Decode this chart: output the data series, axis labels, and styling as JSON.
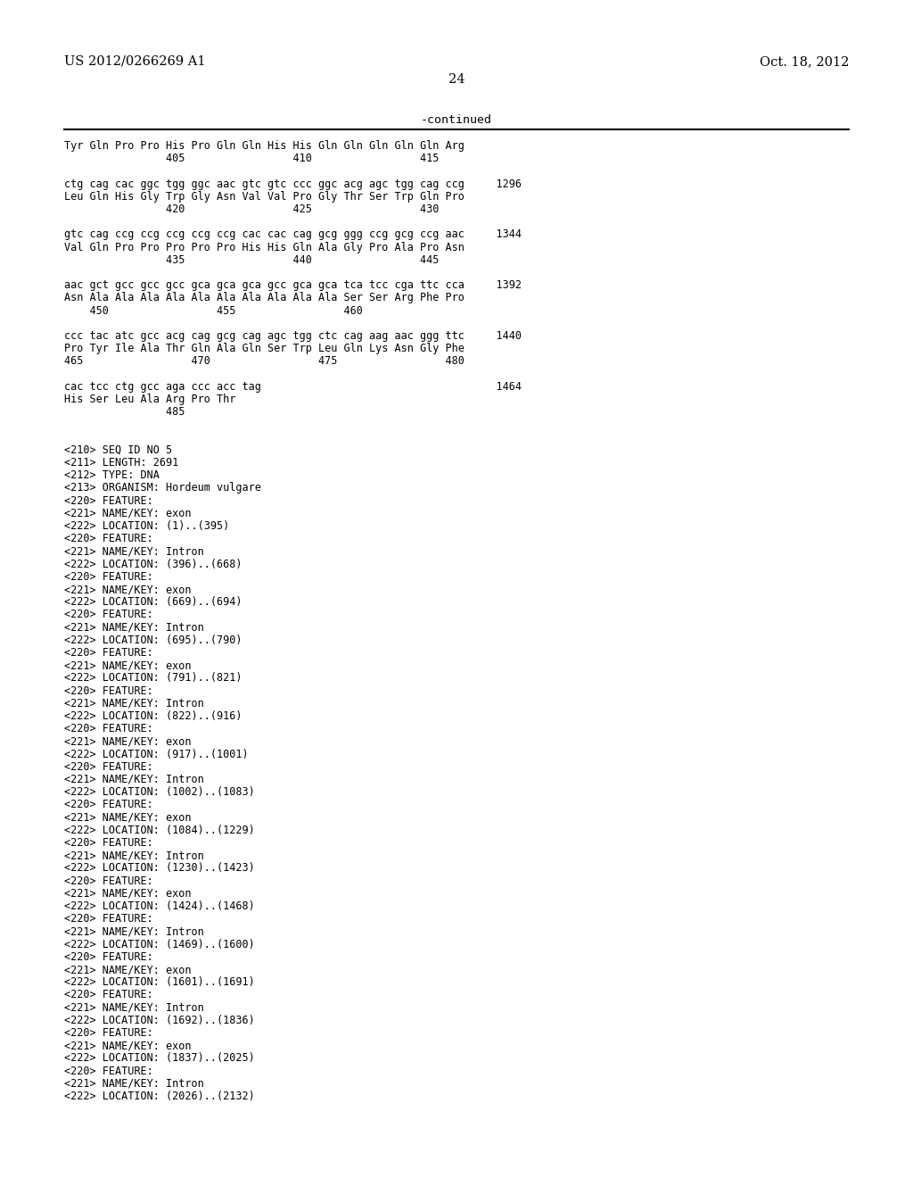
{
  "header_left": "US 2012/0266269 A1",
  "header_right": "Oct. 18, 2012",
  "page_number": "24",
  "continued_label": "-continued",
  "background_color": "#ffffff",
  "text_color": "#000000",
  "content_lines": [
    "Tyr Gln Pro Pro His Pro Gln Gln His His Gln Gln Gln Gln Gln Arg",
    "                405                 410                 415",
    "",
    "ctg cag cac ggc tgg ggc aac gtc gtc ccc ggc acg agc tgg cag ccg     1296",
    "Leu Gln His Gly Trp Gly Asn Val Val Pro Gly Thr Ser Trp Gln Pro",
    "                420                 425                 430",
    "",
    "gtc cag ccg ccg ccg ccg ccg cac cac cag gcg ggg ccg gcg ccg aac     1344",
    "Val Gln Pro Pro Pro Pro Pro His His Gln Ala Gly Pro Ala Pro Asn",
    "                435                 440                 445",
    "",
    "aac gct gcc gcc gcc gca gca gca gcc gca gca tca tcc cga ttc cca     1392",
    "Asn Ala Ala Ala Ala Ala Ala Ala Ala Ala Ala Ser Ser Arg Phe Pro",
    "    450                 455                 460",
    "",
    "ccc tac atc gcc acg cag gcg cag agc tgg ctc cag aag aac ggg ttc     1440",
    "Pro Tyr Ile Ala Thr Gln Ala Gln Ser Trp Leu Gln Lys Asn Gly Phe",
    "465                 470                 475                 480",
    "",
    "cac tcc ctg gcc aga ccc acc tag                                     1464",
    "His Ser Leu Ala Arg Pro Thr",
    "                485",
    "",
    "",
    "<210> SEQ ID NO 5",
    "<211> LENGTH: 2691",
    "<212> TYPE: DNA",
    "<213> ORGANISM: Hordeum vulgare",
    "<220> FEATURE:",
    "<221> NAME/KEY: exon",
    "<222> LOCATION: (1)..(395)",
    "<220> FEATURE:",
    "<221> NAME/KEY: Intron",
    "<222> LOCATION: (396)..(668)",
    "<220> FEATURE:",
    "<221> NAME/KEY: exon",
    "<222> LOCATION: (669)..(694)",
    "<220> FEATURE:",
    "<221> NAME/KEY: Intron",
    "<222> LOCATION: (695)..(790)",
    "<220> FEATURE:",
    "<221> NAME/KEY: exon",
    "<222> LOCATION: (791)..(821)",
    "<220> FEATURE:",
    "<221> NAME/KEY: Intron",
    "<222> LOCATION: (822)..(916)",
    "<220> FEATURE:",
    "<221> NAME/KEY: exon",
    "<222> LOCATION: (917)..(1001)",
    "<220> FEATURE:",
    "<221> NAME/KEY: Intron",
    "<222> LOCATION: (1002)..(1083)",
    "<220> FEATURE:",
    "<221> NAME/KEY: exon",
    "<222> LOCATION: (1084)..(1229)",
    "<220> FEATURE:",
    "<221> NAME/KEY: Intron",
    "<222> LOCATION: (1230)..(1423)",
    "<220> FEATURE:",
    "<221> NAME/KEY: exon",
    "<222> LOCATION: (1424)..(1468)",
    "<220> FEATURE:",
    "<221> NAME/KEY: Intron",
    "<222> LOCATION: (1469)..(1600)",
    "<220> FEATURE:",
    "<221> NAME/KEY: exon",
    "<222> LOCATION: (1601)..(1691)",
    "<220> FEATURE:",
    "<221> NAME/KEY: Intron",
    "<222> LOCATION: (1692)..(1836)",
    "<220> FEATURE:",
    "<221> NAME/KEY: exon",
    "<222> LOCATION: (1837)..(2025)",
    "<220> FEATURE:",
    "<221> NAME/KEY: Intron",
    "<222> LOCATION: (2026)..(2132)"
  ]
}
